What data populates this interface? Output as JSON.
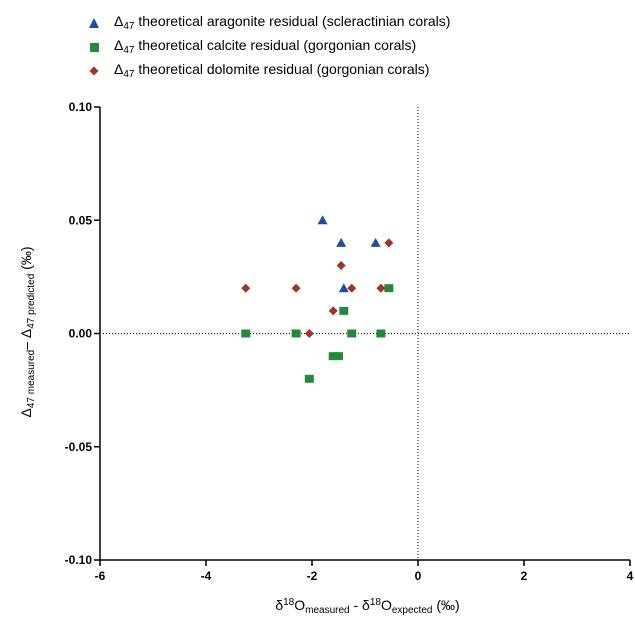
{
  "chart_data": {
    "type": "scatter",
    "xlim": [
      -6,
      4
    ],
    "ylim": [
      -0.1,
      0.1
    ],
    "xticks": [
      -6,
      -4,
      -2,
      0,
      2,
      4
    ],
    "xtick_labels": [
      "-6",
      "-4",
      "-2",
      "0",
      "2",
      "4"
    ],
    "yticks": [
      -0.1,
      -0.05,
      0,
      0.05,
      0.1
    ],
    "ytick_labels": [
      "-0.10",
      "-0.05",
      "0.00",
      "0.05",
      "0.10"
    ],
    "reference_lines": {
      "x": 0,
      "y": 0,
      "style": "dotted"
    },
    "xlabel": {
      "base1": "δ",
      "sup": "18",
      "base2": "O",
      "sub1": "measured",
      "mid": " - δ",
      "sup2": "18",
      "base3": "O",
      "sub2": "expected",
      "unit": " (‰)"
    },
    "ylabel": {
      "d1": "Δ",
      "s1": "47 measured",
      "mid": "– Δ",
      "s2": "47 predicted",
      "unit": " (‰)"
    },
    "legend_position": "top-left",
    "series": [
      {
        "legend": {
          "delta": "Δ",
          "sub": "47",
          "text": " theoretical aragonite residual (scleractinian corals)"
        },
        "marker": "triangle",
        "color": "#1f4e9c",
        "points": [
          {
            "x": -1.8,
            "y": 0.05
          },
          {
            "x": -1.45,
            "y": 0.04
          },
          {
            "x": -0.8,
            "y": 0.04
          },
          {
            "x": -1.4,
            "y": 0.02
          }
        ]
      },
      {
        "legend": {
          "delta": "Δ",
          "sub": "47",
          "text": " theoretical calcite residual (gorgonian corals)"
        },
        "marker": "square",
        "color": "#238a3c",
        "points": [
          {
            "x": -3.25,
            "y": 0.0
          },
          {
            "x": -2.3,
            "y": 0.0
          },
          {
            "x": -1.25,
            "y": 0.0
          },
          {
            "x": -0.7,
            "y": 0.0
          },
          {
            "x": -1.4,
            "y": 0.01
          },
          {
            "x": -0.55,
            "y": 0.02
          },
          {
            "x": -1.6,
            "y": -0.01
          },
          {
            "x": -1.5,
            "y": -0.01
          },
          {
            "x": -2.05,
            "y": -0.02
          }
        ]
      },
      {
        "legend": {
          "delta": "Δ",
          "sub": "47",
          "text": " theoretical dolomite residual (gorgonian corals)"
        },
        "marker": "diamond",
        "color": "#a33325",
        "points": [
          {
            "x": -3.25,
            "y": 0.02
          },
          {
            "x": -2.3,
            "y": 0.02
          },
          {
            "x": -1.25,
            "y": 0.02
          },
          {
            "x": -0.7,
            "y": 0.02
          },
          {
            "x": -1.45,
            "y": 0.03
          },
          {
            "x": -0.55,
            "y": 0.04
          },
          {
            "x": -1.6,
            "y": 0.01
          },
          {
            "x": -2.05,
            "y": 0.0
          }
        ]
      }
    ]
  }
}
